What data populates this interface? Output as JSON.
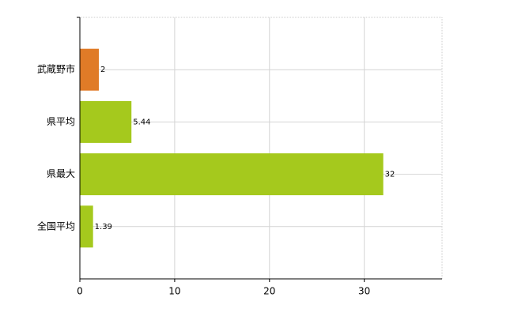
{
  "chart_data": {
    "type": "bar",
    "orientation": "horizontal",
    "categories": [
      "武蔵野市",
      "県平均",
      "県最大",
      "全国平均"
    ],
    "values": [
      2,
      5.44,
      32,
      1.39
    ],
    "colors": [
      "#e07b27",
      "#a5c91d",
      "#a5c91d",
      "#a5c91d"
    ],
    "xlim": [
      0,
      38.2
    ],
    "xticks": [
      0,
      10,
      20,
      30
    ],
    "grid": true
  }
}
